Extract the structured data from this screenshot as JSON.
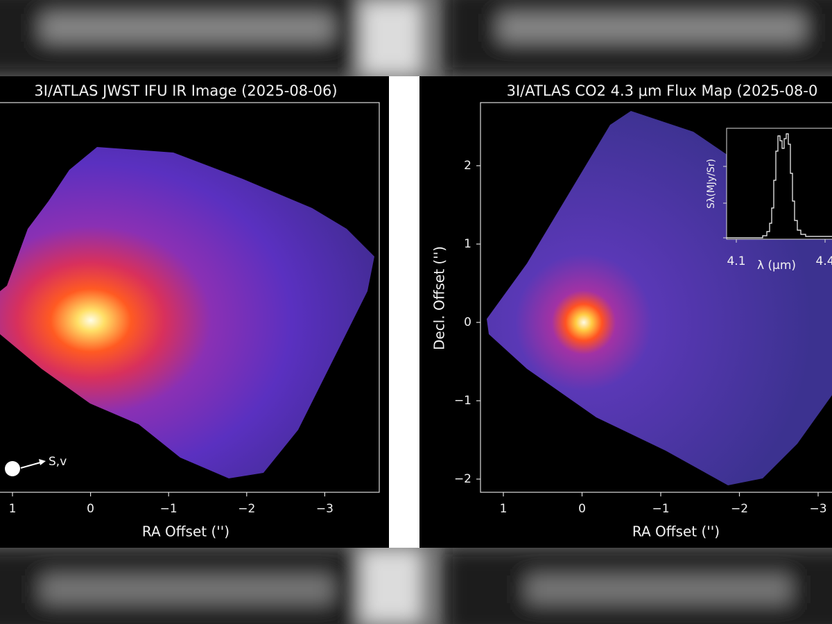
{
  "left_panel": {
    "title": "3I/ATLAS JWST IFU IR Image (2025-08-06)",
    "x_label": "RA Offset ('')",
    "x_ticks": [
      "1",
      "0",
      "−1",
      "−2",
      "−3"
    ],
    "annotation": "S,v"
  },
  "right_panel": {
    "title": "3I/ATLAS CO2 4.3 μm Flux Map (2025-08-0",
    "x_label": "RA Offset ('')",
    "y_label": "Decl. Offset ('')",
    "x_ticks": [
      "1",
      "0",
      "−1",
      "−2",
      "−3"
    ],
    "y_ticks": [
      "2",
      "1",
      "0",
      "−1",
      "−2"
    ],
    "inset": {
      "y_label": "Sλ(MJy/Sr)",
      "x_label": "λ (μm)",
      "x_ticks": [
        "4.1",
        "4.4"
      ]
    }
  }
}
